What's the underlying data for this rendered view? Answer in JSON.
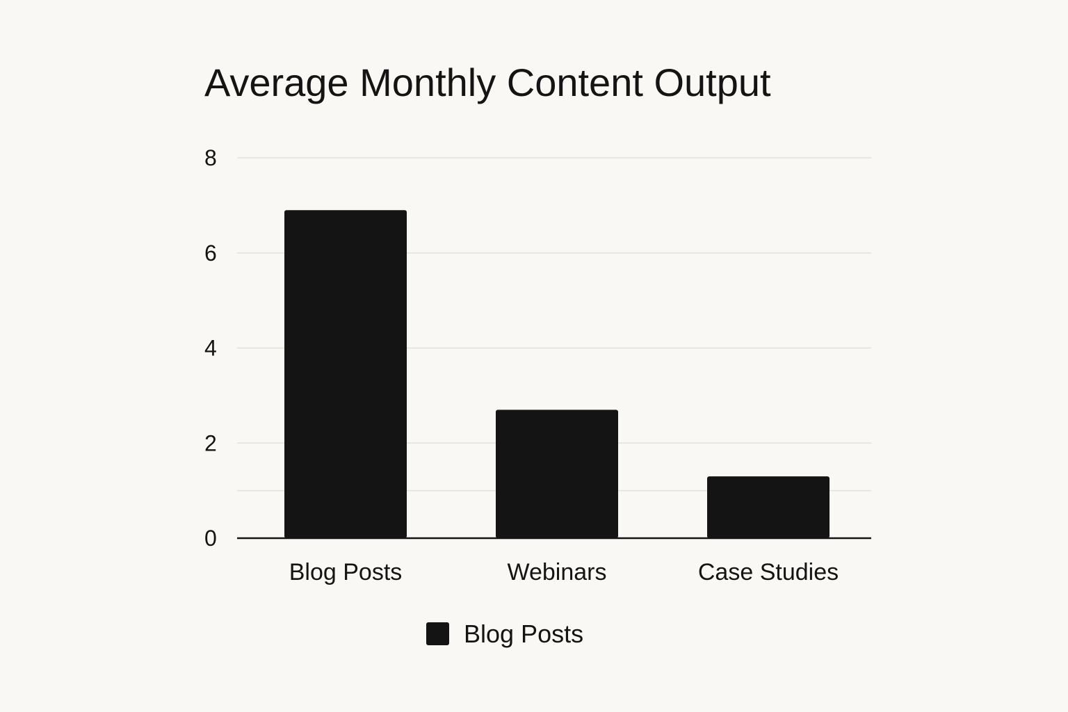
{
  "chart_data": {
    "type": "bar",
    "title": "Average Monthly Content Output",
    "categories": [
      "Blog Posts",
      "Webinars",
      "Case Studies"
    ],
    "series": [
      {
        "name": "Blog Posts",
        "values": [
          6.9,
          2.7,
          1.3
        ],
        "color": "#141414"
      }
    ],
    "ylim": [
      0,
      8
    ],
    "yticks": [
      0,
      2,
      4,
      6,
      8
    ],
    "gridlines": [
      1,
      2,
      4,
      6,
      8
    ],
    "grid": true,
    "legend": {
      "placement": "bottom-center"
    },
    "xlabel": "",
    "ylabel": ""
  },
  "colors": {
    "background": "#f9f8f4",
    "bar": "#141414",
    "grid": "#e3e1dc",
    "text": "#141414"
  }
}
